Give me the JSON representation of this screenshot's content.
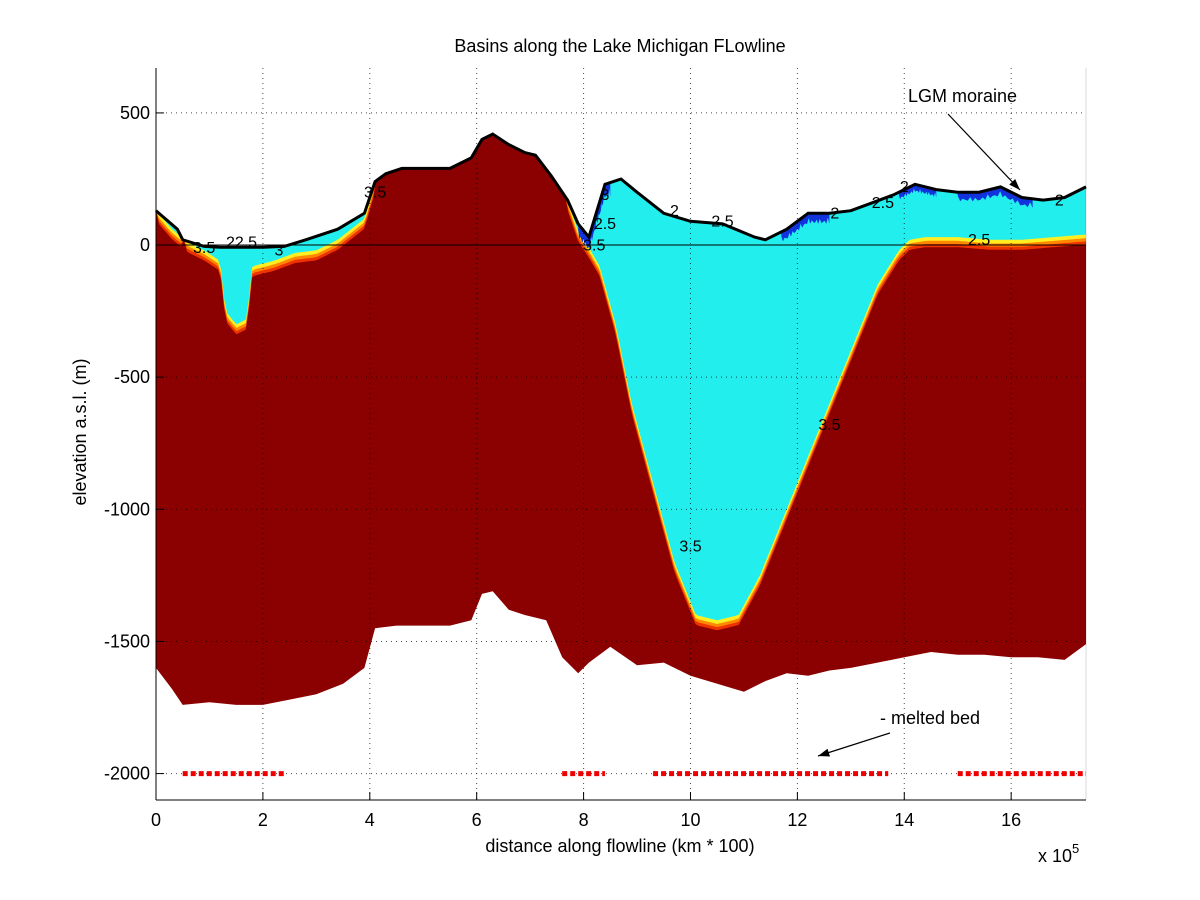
{
  "chart_data": {
    "type": "area",
    "title": "Basins along the Lake Michigan FLowline",
    "xlabel": "distance along flowline (km * 100)",
    "ylabel": "elevation a.s.l. (m)",
    "x_multiplier_label": "x 10",
    "x_multiplier_exponent": "5",
    "xlim": [
      0,
      17.4
    ],
    "ylim": [
      -2100,
      670
    ],
    "x_ticks": [
      0,
      2,
      4,
      6,
      8,
      10,
      12,
      14,
      16
    ],
    "x_tick_labels": [
      "0",
      "2",
      "4",
      "6",
      "8",
      "10",
      "12",
      "14",
      "16"
    ],
    "y_ticks": [
      500,
      0,
      -500,
      -1000,
      -1500,
      -2000
    ],
    "y_tick_labels": [
      "500",
      "0",
      "-500",
      "-1000",
      "-1500",
      "-2000"
    ],
    "grid": true,
    "colors": {
      "bedrock": "#8b0000",
      "basin_fill": "#22eeee",
      "deep_fill": "#1133dd",
      "contour_yellow": "#ffee22",
      "contour_orange": "#ff8800",
      "contour_red": "#ee3300",
      "melted_bed": "#ee0000"
    },
    "surface": {
      "x": [
        0,
        0.4,
        0.5,
        0.9,
        1.2,
        1.6,
        2.0,
        2.4,
        2.8,
        3.4,
        3.9,
        4.1,
        4.3,
        4.6,
        5.0,
        5.5,
        5.9,
        6.1,
        6.3,
        6.6,
        6.9,
        7.1,
        7.4,
        7.7,
        7.9,
        8.1,
        8.4,
        8.7,
        9.0,
        9.5,
        10.0,
        10.6,
        11.2,
        11.4,
        11.8,
        12.2,
        12.6,
        13.0,
        13.4,
        13.8,
        14.2,
        14.6,
        15.0,
        15.4,
        15.8,
        16.2,
        16.6,
        17.0,
        17.4
      ],
      "y": [
        130,
        60,
        20,
        -5,
        -8,
        -8,
        -8,
        -5,
        20,
        60,
        120,
        240,
        270,
        290,
        290,
        290,
        330,
        400,
        420,
        380,
        350,
        340,
        260,
        170,
        80,
        30,
        230,
        250,
        200,
        120,
        90,
        80,
        30,
        20,
        60,
        120,
        120,
        130,
        160,
        190,
        230,
        210,
        200,
        200,
        220,
        180,
        170,
        180,
        220
      ]
    },
    "bed_surface": {
      "x": [
        0,
        0.3,
        0.6,
        0.9,
        1.2,
        1.3,
        1.5,
        1.7,
        1.8,
        2.2,
        2.6,
        3.0,
        3.4,
        3.9,
        4.1,
        4.3,
        4.6,
        5.0,
        5.5,
        5.9,
        6.1,
        6.3,
        6.6,
        6.9,
        7.1,
        7.4,
        7.7,
        7.9,
        8.1,
        8.3,
        8.6,
        8.9,
        9.3,
        9.7,
        10.1,
        10.5,
        10.9,
        11.3,
        11.6,
        12.0,
        12.5,
        13.0,
        13.5,
        13.9,
        14.1,
        14.4,
        15.0,
        15.6,
        16.2,
        16.8,
        17.4
      ],
      "y": [
        130,
        60,
        10,
        -20,
        -60,
        -250,
        -300,
        -280,
        -80,
        -60,
        -30,
        -20,
        20,
        100,
        240,
        270,
        290,
        290,
        290,
        330,
        400,
        420,
        380,
        350,
        340,
        260,
        170,
        50,
        -10,
        -80,
        -300,
        -600,
        -900,
        -1200,
        -1400,
        -1420,
        -1400,
        -1250,
        -1100,
        -900,
        -650,
        -400,
        -150,
        -20,
        20,
        30,
        30,
        20,
        20,
        30,
        40
      ]
    },
    "lower_boundary": {
      "x": [
        0,
        0.3,
        0.5,
        1.0,
        1.5,
        2.0,
        2.5,
        3.0,
        3.5,
        3.9,
        4.1,
        4.5,
        5.0,
        5.5,
        5.9,
        6.1,
        6.3,
        6.6,
        6.9,
        7.3,
        7.6,
        7.9,
        8.1,
        8.5,
        9.0,
        9.5,
        10.0,
        10.5,
        11.0,
        11.4,
        11.8,
        12.2,
        12.6,
        13.0,
        13.5,
        14.0,
        14.5,
        15.0,
        15.5,
        16.0,
        16.5,
        17.0,
        17.4
      ],
      "y": [
        -1600,
        -1680,
        -1740,
        -1730,
        -1740,
        -1740,
        -1720,
        -1700,
        -1660,
        -1600,
        -1450,
        -1440,
        -1440,
        -1440,
        -1420,
        -1320,
        -1310,
        -1380,
        -1400,
        -1420,
        -1560,
        -1620,
        -1580,
        -1520,
        -1590,
        -1580,
        -1630,
        -1660,
        -1690,
        -1650,
        -1620,
        -1630,
        -1610,
        -1600,
        -1580,
        -1560,
        -1540,
        -1550,
        -1550,
        -1560,
        -1560,
        -1570,
        -1510
      ]
    },
    "contour_labels": [
      {
        "x": 0.9,
        "y": -30,
        "text": "3.5"
      },
      {
        "x": 1.6,
        "y": -10,
        "text": "22.5"
      },
      {
        "x": 2.3,
        "y": -40,
        "text": "3"
      },
      {
        "x": 4.1,
        "y": 180,
        "text": "3.5"
      },
      {
        "x": 8.4,
        "y": 170,
        "text": "3"
      },
      {
        "x": 8.2,
        "y": -20,
        "text": "3.5"
      },
      {
        "x": 8.4,
        "y": 60,
        "text": "2.5"
      },
      {
        "x": 9.7,
        "y": 110,
        "text": "2"
      },
      {
        "x": 10.6,
        "y": 70,
        "text": "2.5"
      },
      {
        "x": 12.7,
        "y": 100,
        "text": "2"
      },
      {
        "x": 13.6,
        "y": 140,
        "text": "2.5"
      },
      {
        "x": 14.0,
        "y": 200,
        "text": "2"
      },
      {
        "x": 15.4,
        "y": 0,
        "text": "2.5"
      },
      {
        "x": 16.9,
        "y": 150,
        "text": "2"
      },
      {
        "x": 12.6,
        "y": -700,
        "text": "3.5"
      },
      {
        "x": 10.0,
        "y": -1160,
        "text": "3.5"
      }
    ],
    "annotations": {
      "lgm_moraine": {
        "text": "LGM moraine",
        "x": 14.0,
        "y": 560
      },
      "melted_bed": {
        "text": "- melted bed",
        "x": 13.7,
        "y": -1800
      }
    },
    "melted_bed_segments": [
      [
        0.5,
        2.4
      ],
      [
        7.6,
        8.4
      ],
      [
        9.3,
        13.7
      ],
      [
        15.0,
        17.4
      ]
    ],
    "melted_bed_level": -2000
  }
}
